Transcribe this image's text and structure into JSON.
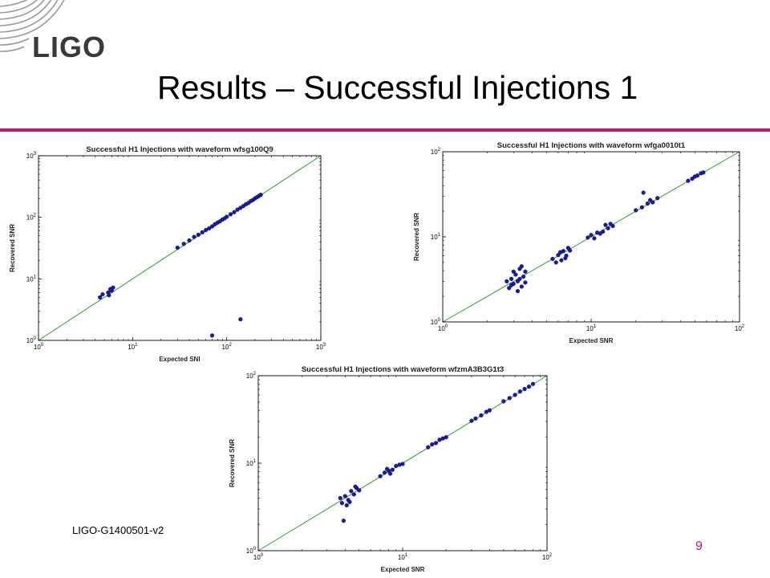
{
  "slide": {
    "logo": "LIGO",
    "title": "Results – Successful Injections 1",
    "footer_id": "LIGO-G1400501-v2",
    "page_number": "9",
    "accent_color": "#c8146e"
  },
  "chart_data": [
    {
      "type": "scatter",
      "title": "Successful H1 Injections with waveform wfsg100Q9",
      "xlabel": "Expected SNI",
      "ylabel": "Recovered SNR",
      "xscale": "log",
      "yscale": "log",
      "xlim": [
        1,
        1000
      ],
      "ylim": [
        1,
        1000
      ],
      "x_ticks": [
        "10^0",
        "10^1",
        "10^2",
        "10^3"
      ],
      "y_ticks": [
        "10^0",
        "10^1",
        "10^2",
        "10^3"
      ],
      "reference_line": "y = x",
      "series": [
        {
          "marker_color": "#1a1aa8",
          "points": [
            [
              4.5,
              5.0
            ],
            [
              4.8,
              5.6
            ],
            [
              5.5,
              6.0
            ],
            [
              6.0,
              6.4
            ],
            [
              6.2,
              7.2
            ],
            [
              5.8,
              6.8
            ],
            [
              5.6,
              5.4
            ],
            [
              30,
              32
            ],
            [
              35,
              37
            ],
            [
              40,
              42
            ],
            [
              45,
              48
            ],
            [
              50,
              52
            ],
            [
              55,
              57
            ],
            [
              60,
              62
            ],
            [
              65,
              66
            ],
            [
              70,
              71
            ],
            [
              75,
              77
            ],
            [
              80,
              82
            ],
            [
              85,
              86
            ],
            [
              90,
              92
            ],
            [
              95,
              96
            ],
            [
              100,
              102
            ],
            [
              110,
              112
            ],
            [
              120,
              121
            ],
            [
              130,
              133
            ],
            [
              140,
              142
            ],
            [
              150,
              152
            ],
            [
              160,
              163
            ],
            [
              170,
              171
            ],
            [
              180,
              183
            ],
            [
              190,
              191
            ],
            [
              200,
              203
            ],
            [
              210,
              212
            ],
            [
              220,
              222
            ],
            [
              230,
              232
            ],
            [
              70,
              1.2
            ],
            [
              140,
              2.2
            ]
          ]
        }
      ]
    },
    {
      "type": "scatter",
      "title": "Successful H1 Injections with waveform wfga0010t1",
      "xlabel": "Expected SNR",
      "ylabel": "Recovered SNR",
      "xscale": "log",
      "yscale": "log",
      "xlim": [
        1,
        100
      ],
      "ylim": [
        1,
        100
      ],
      "x_ticks": [
        "10^0",
        "10^1",
        "10^2"
      ],
      "y_ticks": [
        "10^0",
        "10^1",
        "10^2"
      ],
      "reference_line": "y = x",
      "series": [
        {
          "marker_color": "#1a1aa8",
          "points": [
            [
              2.8,
              2.5
            ],
            [
              2.9,
              3.2
            ],
            [
              3.0,
              2.8
            ],
            [
              3.1,
              3.6
            ],
            [
              3.2,
              3.0
            ],
            [
              3.3,
              4.2
            ],
            [
              3.4,
              2.6
            ],
            [
              3.5,
              3.4
            ],
            [
              3.6,
              3.9
            ],
            [
              3.2,
              2.3
            ],
            [
              2.7,
              3.0
            ],
            [
              3.0,
              3.9
            ],
            [
              3.4,
              4.5
            ],
            [
              3.6,
              2.9
            ],
            [
              3.3,
              3.2
            ],
            [
              2.9,
              2.7
            ],
            [
              5.5,
              5.5
            ],
            [
              6.0,
              6.1
            ],
            [
              6.3,
              5.3
            ],
            [
              6.5,
              6.8
            ],
            [
              6.8,
              6.0
            ],
            [
              7.0,
              7.4
            ],
            [
              6.2,
              6.6
            ],
            [
              7.2,
              6.9
            ],
            [
              5.8,
              5.0
            ],
            [
              6.7,
              5.6
            ],
            [
              9.5,
              9.8
            ],
            [
              10,
              10.5
            ],
            [
              11,
              11.2
            ],
            [
              12,
              11.5
            ],
            [
              13,
              12.6
            ],
            [
              14,
              13.4
            ],
            [
              12.5,
              13.8
            ],
            [
              11.5,
              10.9
            ],
            [
              10.5,
              9.6
            ],
            [
              13.5,
              14.2
            ],
            [
              20,
              20.5
            ],
            [
              22,
              22.2
            ],
            [
              24,
              24.6
            ],
            [
              26,
              25.4
            ],
            [
              28,
              28.5
            ],
            [
              25,
              27.0
            ],
            [
              22.5,
              33.0
            ],
            [
              45,
              45.5
            ],
            [
              48,
              48.2
            ],
            [
              50,
              51.0
            ],
            [
              52,
              52.5
            ],
            [
              55,
              55.8
            ],
            [
              57,
              57.0
            ]
          ]
        }
      ]
    },
    {
      "type": "scatter",
      "title": "Successful H1 Injections with waveform wfzmA3B3G1t3",
      "xlabel": "Expected SNR",
      "ylabel": "Recovered SNR",
      "xscale": "log",
      "yscale": "log",
      "xlim": [
        1,
        100
      ],
      "ylim": [
        1,
        100
      ],
      "x_ticks": [
        "10^0",
        "10^1",
        "10^2"
      ],
      "y_ticks": [
        "10^0",
        "10^1",
        "10^2"
      ],
      "reference_line": "y = x",
      "series": [
        {
          "marker_color": "#1a1aa8",
          "points": [
            [
              3.8,
              3.5
            ],
            [
              4.0,
              4.2
            ],
            [
              4.2,
              3.8
            ],
            [
              4.4,
              4.8
            ],
            [
              4.6,
              4.4
            ],
            [
              4.8,
              5.2
            ],
            [
              5.0,
              4.9
            ],
            [
              4.1,
              3.3
            ],
            [
              3.9,
              2.2
            ],
            [
              4.3,
              3.6
            ],
            [
              4.7,
              5.4
            ],
            [
              3.7,
              4.0
            ],
            [
              7.0,
              7.1
            ],
            [
              7.5,
              7.8
            ],
            [
              8.0,
              8.2
            ],
            [
              8.5,
              8.4
            ],
            [
              9.0,
              9.3
            ],
            [
              9.5,
              9.6
            ],
            [
              10,
              9.8
            ],
            [
              8.2,
              7.6
            ],
            [
              7.8,
              8.6
            ],
            [
              15,
              15.2
            ],
            [
              16,
              16.4
            ],
            [
              17,
              17.0
            ],
            [
              18,
              18.5
            ],
            [
              19,
              19.2
            ],
            [
              20,
              19.8
            ],
            [
              30,
              30.5
            ],
            [
              32,
              32.4
            ],
            [
              35,
              35.2
            ],
            [
              38,
              38.6
            ],
            [
              40,
              40.2
            ],
            [
              50,
              51.0
            ],
            [
              55,
              55.5
            ],
            [
              60,
              60.4
            ],
            [
              65,
              66.0
            ],
            [
              70,
              70.5
            ],
            [
              75,
              75.0
            ],
            [
              80,
              80.5
            ]
          ]
        }
      ]
    }
  ]
}
